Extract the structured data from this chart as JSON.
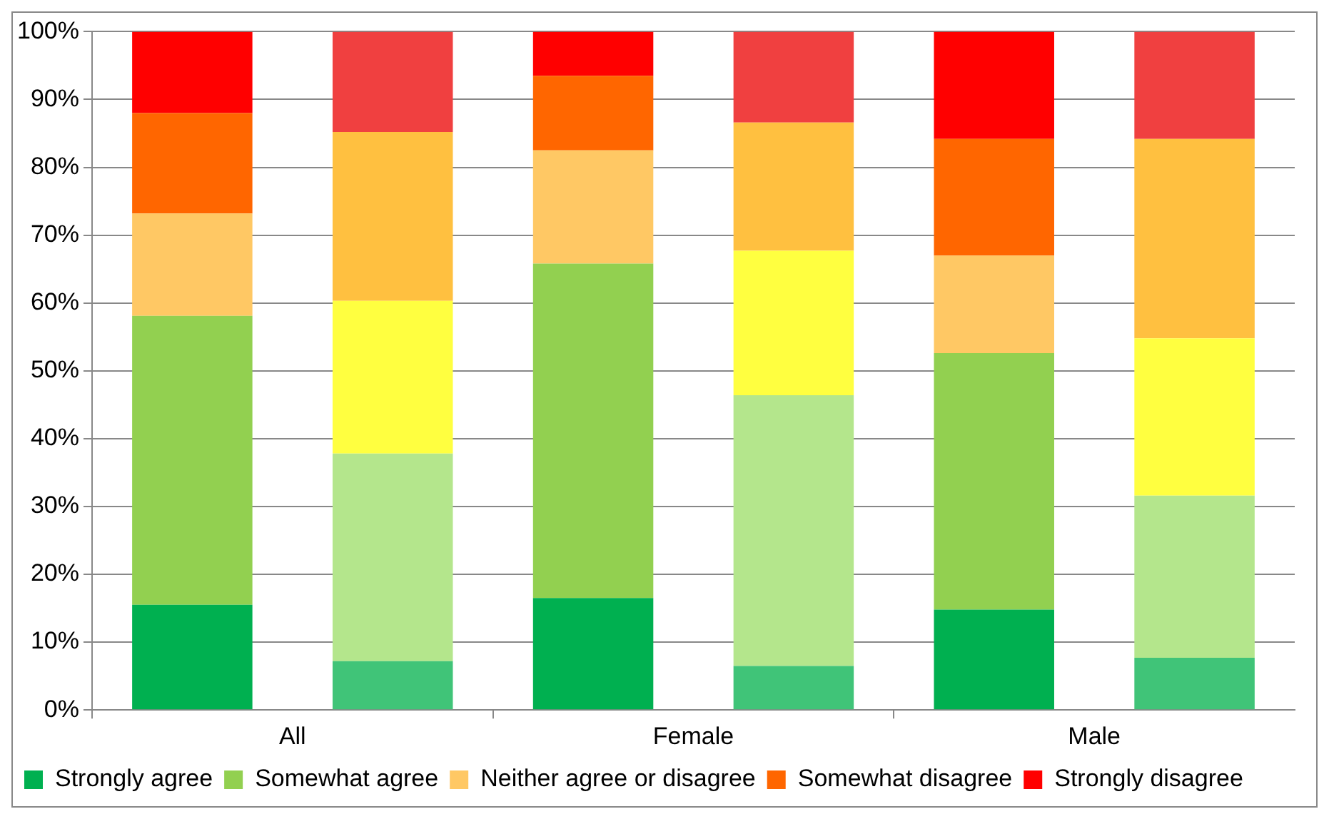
{
  "chart_data": {
    "type": "bar",
    "stacked": true,
    "categories": [
      "All",
      null,
      "Female",
      null,
      "Male",
      null
    ],
    "ylim": [
      0,
      100
    ],
    "yticks": [
      {
        "value": 0,
        "label": "0%"
      },
      {
        "value": 10,
        "label": "10%"
      },
      {
        "value": 20,
        "label": "20%"
      },
      {
        "value": 30,
        "label": "30%"
      },
      {
        "value": 40,
        "label": "40%"
      },
      {
        "value": 50,
        "label": "50%"
      },
      {
        "value": 60,
        "label": "60%"
      },
      {
        "value": 70,
        "label": "70%"
      },
      {
        "value": 80,
        "label": "80%"
      },
      {
        "value": 90,
        "label": "90%"
      },
      {
        "value": 100,
        "label": "100%"
      }
    ],
    "grid": "y",
    "legend": "bottom",
    "series": [
      {
        "name": "Strongly agree",
        "color": "#00b050",
        "values": [
          15.5,
          null,
          16.5,
          null,
          14.8,
          null
        ]
      },
      {
        "name": "Somewhat agree",
        "color": "#92d050",
        "values": [
          42.6,
          null,
          49.3,
          null,
          37.8,
          null
        ]
      },
      {
        "name": "Neither agree or disagree",
        "color": "#ffc864",
        "values": [
          15.1,
          null,
          16.7,
          null,
          14.4,
          null
        ]
      },
      {
        "name": "Somewhat disagree",
        "color": "#ff6600",
        "values": [
          14.8,
          null,
          11.0,
          null,
          17.2,
          null
        ]
      },
      {
        "name": "Strongly disagree",
        "color": "#ff0000",
        "values": [
          12.0,
          null,
          6.5,
          null,
          15.8,
          null
        ]
      },
      {
        "color": "#40c478",
        "values": [
          null,
          7.2,
          null,
          6.5,
          null,
          7.7
        ]
      },
      {
        "color": "#b4e68c",
        "values": [
          null,
          30.6,
          null,
          39.9,
          null,
          23.9
        ]
      },
      {
        "color": "#ffff40",
        "values": [
          null,
          22.5,
          null,
          21.3,
          null,
          23.2
        ]
      },
      {
        "color": "#ffc040",
        "values": [
          null,
          24.9,
          null,
          18.9,
          null,
          29.4
        ]
      },
      {
        "color": "#f04040",
        "values": [
          null,
          14.8,
          null,
          13.4,
          null,
          15.8
        ]
      }
    ]
  }
}
